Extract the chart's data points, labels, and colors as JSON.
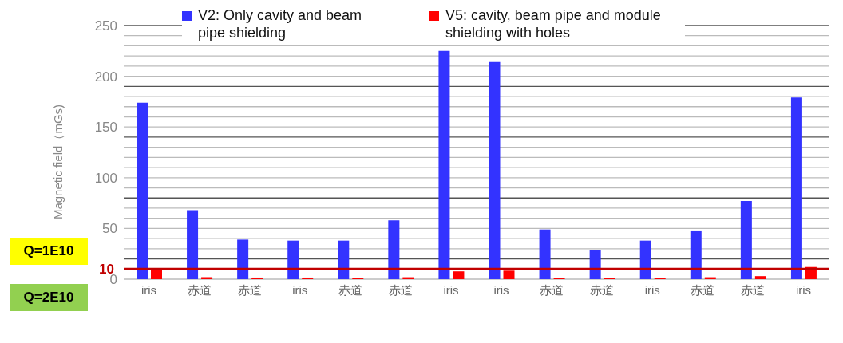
{
  "chart_data": {
    "type": "bar",
    "ylabel": "Magnetic field（mGs)",
    "categories": [
      "iris",
      "赤道",
      "赤道",
      "iris",
      "赤道",
      "赤道",
      "iris",
      "iris",
      "赤道",
      "赤道",
      "iris",
      "赤道",
      "赤道",
      "iris"
    ],
    "series": [
      {
        "name": "V2: Only cavity and beam pipe shielding",
        "color": "#3333ff",
        "values": [
          174,
          68,
          39,
          38,
          38,
          58,
          225,
          214,
          49,
          29,
          38,
          48,
          77,
          179
        ]
      },
      {
        "name": "V5: cavity, beam pipe and module shielding with holes",
        "color": "#ff0000",
        "values": [
          9.5,
          2,
          1.6,
          1.6,
          1.2,
          1.9,
          7.7,
          8.4,
          1.4,
          0.9,
          1.4,
          1.9,
          3,
          12
        ]
      }
    ],
    "ylim": [
      0,
      250
    ],
    "yticks": [
      0,
      {
        "value": 10,
        "label": null
      },
      {
        "value": 20,
        "label": null
      },
      {
        "value": 30,
        "label": null
      },
      {
        "value": 40,
        "label": null
      },
      50,
      {
        "value": 60,
        "label": null
      },
      {
        "value": 70,
        "label": null
      },
      {
        "value": 80,
        "label": null
      },
      {
        "value": 90,
        "label": null
      },
      100,
      {
        "value": 110,
        "label": null
      },
      {
        "value": 120,
        "label": null
      },
      {
        "value": 130,
        "label": null
      },
      {
        "value": 140,
        "label": null
      },
      150,
      {
        "value": 160,
        "label": null
      },
      {
        "value": 170,
        "label": null
      },
      {
        "value": 180,
        "label": null
      },
      {
        "value": 190,
        "label": null
      },
      200,
      {
        "value": 210,
        "label": null
      },
      {
        "value": 220,
        "label": null
      },
      {
        "value": 230,
        "label": null
      },
      {
        "value": 240,
        "label": null
      },
      250
    ],
    "grid": "y",
    "legend": "top",
    "ref_lines": [
      {
        "axis": "y",
        "value": 10,
        "label": "10",
        "color": "#c00000"
      }
    ],
    "annotations": [
      "Q=1E10",
      "Q=2E10"
    ]
  }
}
